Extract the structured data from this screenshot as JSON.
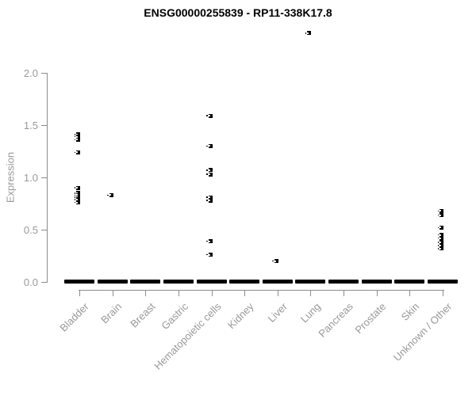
{
  "colors": {
    "point": "#000000",
    "axis": "#8c8c8c",
    "label_text": "#999999",
    "title_text": "#000000",
    "background": "#ffffff"
  },
  "chart_data": {
    "type": "scatter",
    "title": "ENSG00000255839 - RP11-338K17.8",
    "xlabel": "",
    "ylabel": "Expression",
    "ylim": [
      0.0,
      2.0
    ],
    "ytick_labels": [
      "0.0",
      "0.5",
      "1.0",
      "1.5",
      "2.0"
    ],
    "ytick_values": [
      0.0,
      0.5,
      1.0,
      1.5,
      2.0
    ],
    "grid": false,
    "legend": false,
    "categories": [
      "Bladder",
      "Brain",
      "Breast",
      "Gastric",
      "Hematopoietic cells",
      "Kidney",
      "Liver",
      "Lung",
      "Pancreas",
      "Prostate",
      "Skin",
      "Unknown / Other"
    ],
    "series": [
      {
        "name": "Bladder",
        "values": [
          1.41,
          1.39,
          1.36,
          1.24,
          0.9,
          0.85,
          0.83,
          0.81,
          0.79,
          0.76
        ]
      },
      {
        "name": "Brain",
        "values": [
          0.83
        ]
      },
      {
        "name": "Breast",
        "values": []
      },
      {
        "name": "Gastric",
        "values": []
      },
      {
        "name": "Hematopoietic cells",
        "values": [
          1.59,
          1.3,
          1.07,
          1.03,
          0.81,
          0.78,
          0.39,
          0.26
        ]
      },
      {
        "name": "Kidney",
        "values": []
      },
      {
        "name": "Liver",
        "values": [
          0.2
        ]
      },
      {
        "name": "Lung",
        "values": [
          2.38
        ]
      },
      {
        "name": "Pancreas",
        "values": []
      },
      {
        "name": "Prostate",
        "values": []
      },
      {
        "name": "Skin",
        "values": []
      },
      {
        "name": "Unknown / Other",
        "values": [
          0.68,
          0.64,
          0.52,
          0.45,
          0.42,
          0.38,
          0.35,
          0.32
        ]
      }
    ],
    "zero_cluster": {
      "value": 0.0,
      "present_in_all_categories": true
    }
  }
}
